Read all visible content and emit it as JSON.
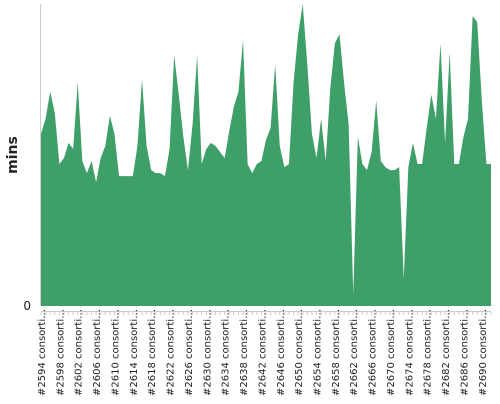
{
  "theme": {
    "series_color": "#3f9f69",
    "axis_color": "#cccccc",
    "text_color": "#222222"
  },
  "chart_data": {
    "type": "area",
    "title": "",
    "xlabel": "",
    "ylabel": "mins",
    "ylim": [
      0,
      100
    ],
    "yticks": [
      "0"
    ],
    "grid": false,
    "legend": "none",
    "x_tick_labels": [
      "#2594 consorti…",
      "#2598 consorti…",
      "#2602 consorti…",
      "#2606 consorti…",
      "#2610 consorti…",
      "#2614 consorti…",
      "#2618 consorti…",
      "#2622 consorti…",
      "#2626 consorti…",
      "#2630 consorti…",
      "#2634 consorti…",
      "#2638 consorti…",
      "#2642 consorti…",
      "#2646 consorti…",
      "#2650 consorti…",
      "#2654 consorti…",
      "#2658 consorti…",
      "#2662 consorti…",
      "#2666 consorti…",
      "#2670 consorti…",
      "#2674 consorti…",
      "#2678 consorti…",
      "#2682 consorti…",
      "#2686 consorti…",
      "#2690 consorti…"
    ],
    "x_start": 2594,
    "series": [
      {
        "values": [
          57,
          62,
          71,
          64,
          47,
          49,
          54,
          52,
          74,
          48,
          44,
          48,
          41,
          49,
          53,
          63,
          57,
          43,
          43,
          43,
          43,
          53,
          75,
          53,
          45,
          44,
          44,
          43,
          52,
          83,
          70,
          56,
          45,
          60,
          83,
          47,
          52,
          54,
          53,
          51,
          49,
          58,
          66,
          71,
          88,
          47,
          44,
          47,
          48,
          55,
          59,
          80,
          53,
          46,
          47,
          74,
          90,
          100,
          80,
          57,
          49,
          62,
          48,
          72,
          87,
          90,
          74,
          60,
          4,
          56,
          47,
          45,
          51,
          68,
          48,
          46,
          45,
          45,
          46,
          9,
          46,
          54,
          47,
          47,
          59,
          70,
          62,
          87,
          54,
          84,
          47,
          47,
          56,
          62,
          96,
          94,
          68,
          47,
          47
        ]
      }
    ]
  }
}
